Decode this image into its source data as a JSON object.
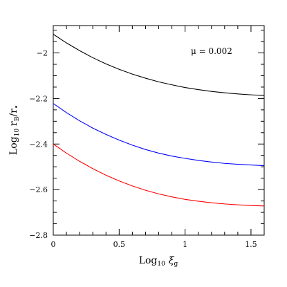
{
  "chart_data": {
    "type": "line",
    "title": "",
    "xlabel": {
      "base": "Log",
      "sub": "10",
      "var": "ξ",
      "varsub": "g"
    },
    "ylabel": {
      "base": "Log",
      "sub": "10",
      "expr1": "r",
      "expr1sub": "B",
      "slash": "/r",
      "expr2sub": "•"
    },
    "xlim": [
      0,
      1.6
    ],
    "ylim": [
      -2.8,
      -1.88
    ],
    "xticks": [
      0,
      0.5,
      1,
      1.5
    ],
    "xtick_labels": [
      "0",
      "0.5",
      "1",
      "1.5"
    ],
    "yticks": [
      -2,
      -2.2,
      -2.4,
      -2.6,
      -2.8
    ],
    "ytick_labels": [
      "−2",
      "−2.2",
      "−2.4",
      "−2.6",
      "−2.8"
    ],
    "grid": false,
    "annotation": "μ  =  0.002",
    "series": [
      {
        "color": "#000000",
        "x": [
          0,
          0.1,
          0.2,
          0.3,
          0.4,
          0.5,
          0.6,
          0.7,
          0.8,
          0.9,
          1.0,
          1.1,
          1.2,
          1.3,
          1.4,
          1.5,
          1.6
        ],
        "y": [
          -1.918,
          -1.956,
          -1.99,
          -2.021,
          -2.048,
          -2.072,
          -2.093,
          -2.111,
          -2.127,
          -2.14,
          -2.152,
          -2.161,
          -2.169,
          -2.175,
          -2.18,
          -2.184,
          -2.187
        ]
      },
      {
        "color": "#0000ff",
        "x": [
          0,
          0.1,
          0.2,
          0.3,
          0.4,
          0.5,
          0.6,
          0.7,
          0.8,
          0.9,
          1.0,
          1.1,
          1.2,
          1.3,
          1.4,
          1.5,
          1.6
        ],
        "y": [
          -2.222,
          -2.262,
          -2.298,
          -2.33,
          -2.358,
          -2.383,
          -2.405,
          -2.424,
          -2.44,
          -2.453,
          -2.463,
          -2.472,
          -2.479,
          -2.485,
          -2.489,
          -2.492,
          -2.495
        ]
      },
      {
        "color": "#ff0000",
        "x": [
          0,
          0.1,
          0.2,
          0.3,
          0.4,
          0.5,
          0.6,
          0.7,
          0.8,
          0.9,
          1.0,
          1.1,
          1.2,
          1.3,
          1.4,
          1.5,
          1.6
        ],
        "y": [
          -2.4,
          -2.44,
          -2.476,
          -2.508,
          -2.537,
          -2.562,
          -2.584,
          -2.603,
          -2.619,
          -2.632,
          -2.643,
          -2.651,
          -2.658,
          -2.663,
          -2.667,
          -2.67,
          -2.672
        ]
      }
    ]
  }
}
